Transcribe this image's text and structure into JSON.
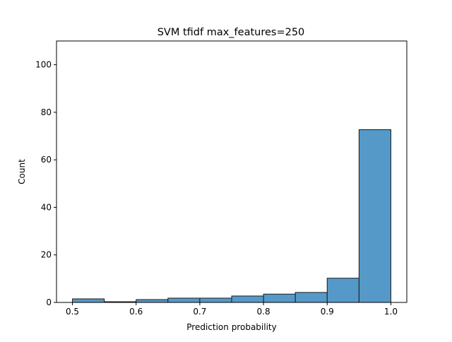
{
  "colors": {
    "bar_fill": "#5599c8",
    "bar_edge": "#1a1a1a",
    "axis": "#000000",
    "background": "#ffffff"
  },
  "chart_data": {
    "type": "bar",
    "title": "SVM tfidf max_features=250",
    "xlabel": "Prediction probability",
    "ylabel": "Count",
    "xlim": [
      0.475,
      1.025
    ],
    "ylim": [
      0,
      110
    ],
    "grid": false,
    "x_ticks": [
      0.5,
      0.6,
      0.7,
      0.8,
      0.9,
      1.0
    ],
    "x_tick_labels": [
      "0.5",
      "0.6",
      "0.7",
      "0.8",
      "0.9",
      "1.0"
    ],
    "y_ticks": [
      0,
      20,
      40,
      60,
      80,
      100
    ],
    "y_tick_labels": [
      "0",
      "20",
      "40",
      "60",
      "80",
      "100"
    ],
    "bins": [
      {
        "start": 0.5,
        "end": 0.55,
        "value": 1.5
      },
      {
        "start": 0.55,
        "end": 0.6,
        "value": 0.3
      },
      {
        "start": 0.6,
        "end": 0.65,
        "value": 1.2
      },
      {
        "start": 0.65,
        "end": 0.7,
        "value": 1.8
      },
      {
        "start": 0.7,
        "end": 0.75,
        "value": 1.8
      },
      {
        "start": 0.75,
        "end": 0.8,
        "value": 2.7
      },
      {
        "start": 0.8,
        "end": 0.85,
        "value": 3.5
      },
      {
        "start": 0.85,
        "end": 0.9,
        "value": 4.2
      },
      {
        "start": 0.9,
        "end": 0.95,
        "value": 10.2
      },
      {
        "start": 0.95,
        "end": 1.0,
        "value": 72.7
      }
    ]
  }
}
